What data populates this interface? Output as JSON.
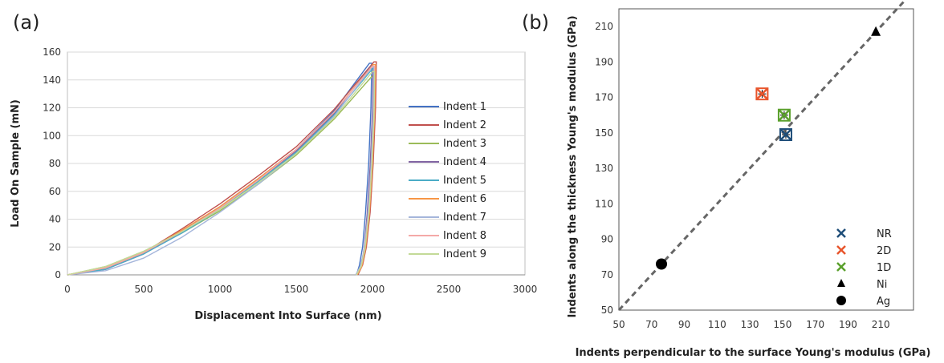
{
  "chart_data": [
    {
      "panel_label": "(a)",
      "type": "line",
      "xlabel": "Displacement Into Surface (nm)",
      "ylabel": "Load On Sample (mN)",
      "xlim": [
        0,
        3000
      ],
      "ylim": [
        0,
        160
      ],
      "xticks": [
        0,
        500,
        1000,
        1500,
        2000,
        2500,
        3000
      ],
      "yticks": [
        0,
        20,
        40,
        60,
        80,
        100,
        120,
        140,
        160
      ],
      "grid": "horizontal",
      "legend_position": "right",
      "series": [
        {
          "name": "Indent 1",
          "color": "#4472C4",
          "loading": [
            [
              0,
              0
            ],
            [
              250,
              4
            ],
            [
              500,
              15
            ],
            [
              750,
              31
            ],
            [
              1000,
              49
            ],
            [
              1250,
              69
            ],
            [
              1500,
              90
            ],
            [
              1750,
              118
            ],
            [
              1980,
              152
            ]
          ],
          "unloading": [
            [
              1995,
              152
            ],
            [
              1990,
              120
            ],
            [
              1975,
              80
            ],
            [
              1955,
              45
            ],
            [
              1935,
              20
            ],
            [
              1915,
              7
            ],
            [
              1895,
              0
            ]
          ]
        },
        {
          "name": "Indent 2",
          "color": "#C0504D",
          "loading": [
            [
              0,
              0
            ],
            [
              250,
              5
            ],
            [
              500,
              16
            ],
            [
              750,
              33
            ],
            [
              1000,
              51
            ],
            [
              1250,
              71
            ],
            [
              1500,
              92
            ],
            [
              1750,
              119
            ],
            [
              2010,
              153
            ]
          ],
          "unloading": [
            [
              2025,
              153
            ],
            [
              2020,
              120
            ],
            [
              2005,
              80
            ],
            [
              1985,
              45
            ],
            [
              1960,
              20
            ],
            [
              1935,
              7
            ],
            [
              1905,
              0
            ]
          ]
        },
        {
          "name": "Indent 3",
          "color": "#9BBB59",
          "loading": [
            [
              0,
              0
            ],
            [
              250,
              6
            ],
            [
              500,
              17
            ],
            [
              750,
              30
            ],
            [
              1000,
              46
            ],
            [
              1250,
              65
            ],
            [
              1500,
              86
            ],
            [
              1750,
              112
            ],
            [
              2000,
              143
            ]
          ],
          "unloading": [
            [
              2015,
              143
            ],
            [
              2010,
              110
            ],
            [
              1995,
              75
            ],
            [
              1975,
              42
            ],
            [
              1950,
              18
            ],
            [
              1925,
              6
            ],
            [
              1895,
              0
            ]
          ]
        },
        {
          "name": "Indent 4",
          "color": "#8064A2",
          "loading": [
            [
              0,
              0
            ],
            [
              250,
              4
            ],
            [
              500,
              15
            ],
            [
              750,
              31
            ],
            [
              1000,
              48
            ],
            [
              1250,
              68
            ],
            [
              1500,
              89
            ],
            [
              1750,
              116
            ],
            [
              1990,
              150
            ]
          ],
          "unloading": [
            [
              2005,
              150
            ],
            [
              2000,
              118
            ],
            [
              1985,
              78
            ],
            [
              1965,
              44
            ],
            [
              1945,
              19
            ],
            [
              1925,
              6
            ],
            [
              1900,
              0
            ]
          ]
        },
        {
          "name": "Indent 5",
          "color": "#4BACC6",
          "loading": [
            [
              0,
              0
            ],
            [
              250,
              4
            ],
            [
              500,
              15
            ],
            [
              750,
              30
            ],
            [
              1000,
              47
            ],
            [
              1250,
              67
            ],
            [
              1500,
              88
            ],
            [
              1750,
              115
            ],
            [
              2000,
              148
            ]
          ],
          "unloading": [
            [
              2015,
              148
            ],
            [
              2010,
              115
            ],
            [
              1995,
              77
            ],
            [
              1975,
              43
            ],
            [
              1950,
              18
            ],
            [
              1925,
              6
            ],
            [
              1895,
              0
            ]
          ]
        },
        {
          "name": "Indent 6",
          "color": "#F79646",
          "loading": [
            [
              0,
              0
            ],
            [
              250,
              5
            ],
            [
              500,
              16
            ],
            [
              750,
              32
            ],
            [
              1000,
              49
            ],
            [
              1250,
              69
            ],
            [
              1500,
              90
            ],
            [
              1750,
              117
            ],
            [
              2005,
              151
            ]
          ],
          "unloading": [
            [
              2020,
              151
            ],
            [
              2015,
              118
            ],
            [
              2000,
              79
            ],
            [
              1980,
              44
            ],
            [
              1955,
              19
            ],
            [
              1930,
              6
            ],
            [
              1900,
              0
            ]
          ]
        },
        {
          "name": "Indent 7",
          "color": "#A5B6DB",
          "loading": [
            [
              0,
              0
            ],
            [
              250,
              3
            ],
            [
              500,
              12
            ],
            [
              750,
              27
            ],
            [
              1000,
              45
            ],
            [
              1250,
              65
            ],
            [
              1500,
              87
            ],
            [
              1750,
              114
            ],
            [
              1995,
              149
            ]
          ],
          "unloading": [
            [
              2010,
              149
            ],
            [
              2005,
              115
            ],
            [
              1990,
              77
            ],
            [
              1970,
              43
            ],
            [
              1945,
              18
            ],
            [
              1920,
              6
            ],
            [
              1890,
              0
            ]
          ]
        },
        {
          "name": "Indent 8",
          "color": "#F4A9A7",
          "loading": [
            [
              0,
              0
            ],
            [
              250,
              5
            ],
            [
              500,
              16
            ],
            [
              750,
              31
            ],
            [
              1000,
              48
            ],
            [
              1250,
              68
            ],
            [
              1500,
              90
            ],
            [
              1750,
              117
            ],
            [
              2000,
              150
            ]
          ],
          "unloading": [
            [
              2015,
              150
            ],
            [
              2010,
              117
            ],
            [
              1995,
              78
            ],
            [
              1975,
              44
            ],
            [
              1950,
              19
            ],
            [
              1925,
              6
            ],
            [
              1895,
              0
            ]
          ]
        },
        {
          "name": "Indent 9",
          "color": "#C3DA97",
          "loading": [
            [
              0,
              0
            ],
            [
              250,
              6
            ],
            [
              500,
              17
            ],
            [
              750,
              31
            ],
            [
              1000,
              47
            ],
            [
              1250,
              66
            ],
            [
              1500,
              87
            ],
            [
              1750,
              113
            ],
            [
              2000,
              146
            ]
          ],
          "unloading": [
            [
              2015,
              146
            ],
            [
              2010,
              113
            ],
            [
              1995,
              76
            ],
            [
              1975,
              42
            ],
            [
              1950,
              18
            ],
            [
              1925,
              6
            ],
            [
              1895,
              0
            ]
          ]
        }
      ]
    },
    {
      "panel_label": "(b)",
      "type": "scatter",
      "xlabel": "Indents perpendicular to the surface  Young's modulus (GPa)",
      "ylabel": "Indents along the thickness Young's modulus (GPa)",
      "xlim": [
        50,
        230
      ],
      "ylim": [
        50,
        220
      ],
      "xticks": [
        50,
        70,
        90,
        110,
        130,
        150,
        170,
        190,
        210
      ],
      "yticks": [
        50,
        70,
        90,
        110,
        130,
        150,
        170,
        190,
        210
      ],
      "grid": "off",
      "legend_position": "bottom-right",
      "reference_line": {
        "from": [
          50,
          50
        ],
        "to": [
          230,
          230
        ],
        "style": "dashed",
        "color": "#666666"
      },
      "series": [
        {
          "name": "NR",
          "marker": "x",
          "color": "#1F4E79",
          "boxed": true,
          "x": [
            152
          ],
          "y": [
            149
          ]
        },
        {
          "name": "2D",
          "marker": "x",
          "color": "#E8552C",
          "boxed": true,
          "x": [
            137.5
          ],
          "y": [
            172
          ]
        },
        {
          "name": "1D",
          "marker": "x",
          "color": "#5AA02C",
          "boxed": true,
          "x": [
            151
          ],
          "y": [
            160
          ]
        },
        {
          "name": "Ni",
          "marker": "triangle",
          "color": "#000000",
          "boxed": false,
          "x": [
            207
          ],
          "y": [
            207
          ]
        },
        {
          "name": "Ag",
          "marker": "circle",
          "color": "#000000",
          "boxed": false,
          "x": [
            76
          ],
          "y": [
            76
          ]
        }
      ]
    }
  ]
}
